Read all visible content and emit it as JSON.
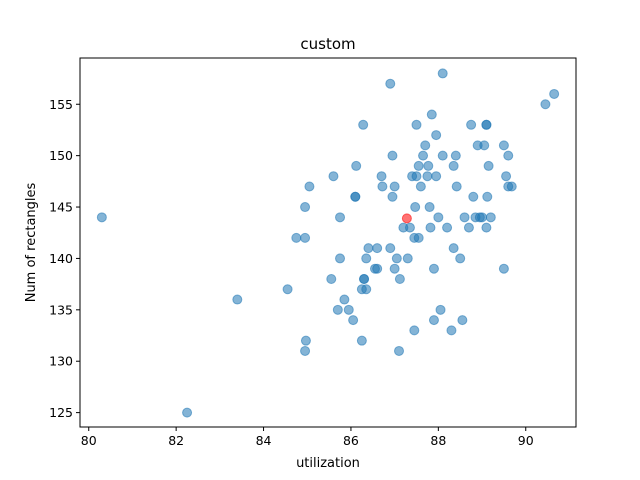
{
  "chart_data": {
    "type": "scatter",
    "title": "custom",
    "xlabel": "utilization",
    "ylabel": "Num of rectangles",
    "xlim": [
      79.8,
      91.15
    ],
    "ylim": [
      123.6,
      159.5
    ],
    "xticks": [
      80,
      82,
      84,
      86,
      88,
      90
    ],
    "yticks": [
      125,
      130,
      135,
      140,
      145,
      150,
      155
    ],
    "grid": false,
    "series": [
      {
        "color": "#1f77b4",
        "opacity": 0.55,
        "points": [
          [
            80.3,
            144
          ],
          [
            82.25,
            125
          ],
          [
            83.4,
            136
          ],
          [
            84.55,
            137
          ],
          [
            84.75,
            142
          ],
          [
            84.95,
            145
          ],
          [
            84.95,
            142
          ],
          [
            84.97,
            132
          ],
          [
            84.95,
            131
          ],
          [
            85.05,
            147
          ],
          [
            85.55,
            138
          ],
          [
            85.6,
            148
          ],
          [
            85.7,
            135
          ],
          [
            85.75,
            144
          ],
          [
            85.75,
            140
          ],
          [
            85.85,
            136
          ],
          [
            85.95,
            135
          ],
          [
            86.05,
            134
          ],
          [
            86.1,
            146
          ],
          [
            86.1,
            146
          ],
          [
            86.12,
            149
          ],
          [
            86.25,
            137
          ],
          [
            86.25,
            132
          ],
          [
            86.28,
            153
          ],
          [
            86.3,
            138
          ],
          [
            86.3,
            138
          ],
          [
            86.35,
            140
          ],
          [
            86.35,
            137
          ],
          [
            86.4,
            141
          ],
          [
            86.55,
            139
          ],
          [
            86.6,
            139
          ],
          [
            86.6,
            141
          ],
          [
            86.7,
            148
          ],
          [
            86.72,
            147
          ],
          [
            86.9,
            141
          ],
          [
            86.9,
            157
          ],
          [
            86.95,
            150
          ],
          [
            86.95,
            146
          ],
          [
            87.0,
            147
          ],
          [
            87.0,
            139
          ],
          [
            87.05,
            140
          ],
          [
            87.1,
            131
          ],
          [
            87.12,
            138
          ],
          [
            87.2,
            143
          ],
          [
            87.3,
            140
          ],
          [
            87.35,
            143
          ],
          [
            87.4,
            148
          ],
          [
            87.45,
            133
          ],
          [
            87.45,
            142
          ],
          [
            87.47,
            145
          ],
          [
            87.5,
            148
          ],
          [
            87.5,
            153
          ],
          [
            87.55,
            142
          ],
          [
            87.55,
            149
          ],
          [
            87.6,
            147
          ],
          [
            87.65,
            150
          ],
          [
            87.7,
            151
          ],
          [
            87.75,
            148
          ],
          [
            87.77,
            149
          ],
          [
            87.8,
            145
          ],
          [
            87.82,
            143
          ],
          [
            87.85,
            154
          ],
          [
            87.9,
            134
          ],
          [
            87.9,
            139
          ],
          [
            87.95,
            148
          ],
          [
            87.95,
            152
          ],
          [
            88.0,
            144
          ],
          [
            88.05,
            135
          ],
          [
            88.1,
            150
          ],
          [
            88.1,
            158
          ],
          [
            88.2,
            143
          ],
          [
            88.3,
            133
          ],
          [
            88.35,
            149
          ],
          [
            88.35,
            141
          ],
          [
            88.4,
            150
          ],
          [
            88.42,
            147
          ],
          [
            88.5,
            140
          ],
          [
            88.55,
            134
          ],
          [
            88.6,
            144
          ],
          [
            88.7,
            143
          ],
          [
            88.75,
            153
          ],
          [
            88.8,
            146
          ],
          [
            88.85,
            144
          ],
          [
            88.9,
            151
          ],
          [
            88.95,
            144
          ],
          [
            89.0,
            144
          ],
          [
            89.05,
            151
          ],
          [
            89.1,
            153
          ],
          [
            89.1,
            153
          ],
          [
            89.1,
            143
          ],
          [
            89.12,
            146
          ],
          [
            89.15,
            149
          ],
          [
            89.2,
            144
          ],
          [
            89.5,
            139
          ],
          [
            89.5,
            151
          ],
          [
            89.55,
            148
          ],
          [
            89.6,
            147
          ],
          [
            89.6,
            150
          ],
          [
            89.68,
            147
          ],
          [
            90.45,
            155
          ],
          [
            90.65,
            156
          ]
        ]
      },
      {
        "color": "#ff0000",
        "opacity": 0.55,
        "points": [
          [
            87.28,
            143.9
          ]
        ]
      }
    ]
  }
}
